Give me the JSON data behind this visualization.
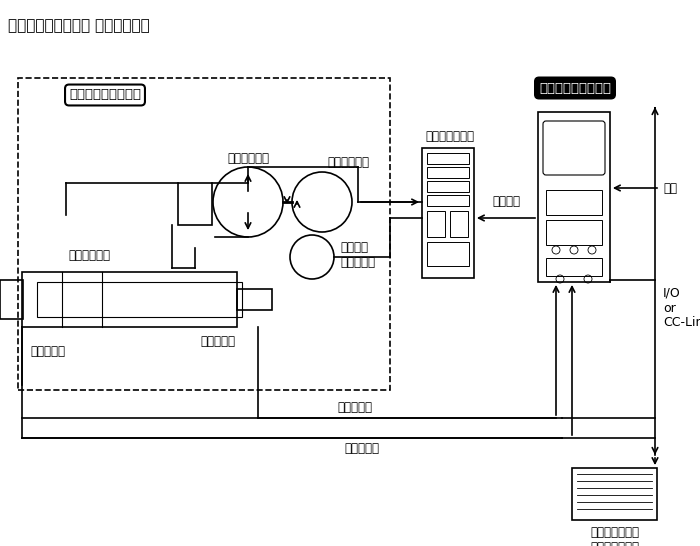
{
  "title": "「あつかんサーボ」 基本機種構成",
  "bg_color": "#ffffff",
  "lc": "#000000",
  "cylinder_unit_label": "シリンダユニット部",
  "servo_controller_label": "サーボコントローラ",
  "servo_driver_label": "サーボドライバ",
  "servo_motor_label": "サーボモータ",
  "rotary_encoder_label": "ロータリ\nエンコーダ",
  "bidirectional_pump_label": "双方向ポンプ",
  "hydraulic_cylinder_label": "油圧シリンダ",
  "length_sensor_label": "測長センサ",
  "load_cell_label": "ロードセル",
  "position_data_label": "位置データ",
  "load_data_label": "荷重データ",
  "operation_command_label": "作動指令",
  "power_label": "電源",
  "io_label": "I/O\nor\nCC-Link",
  "plc_label": "プログラマブル\nコントローラ等"
}
